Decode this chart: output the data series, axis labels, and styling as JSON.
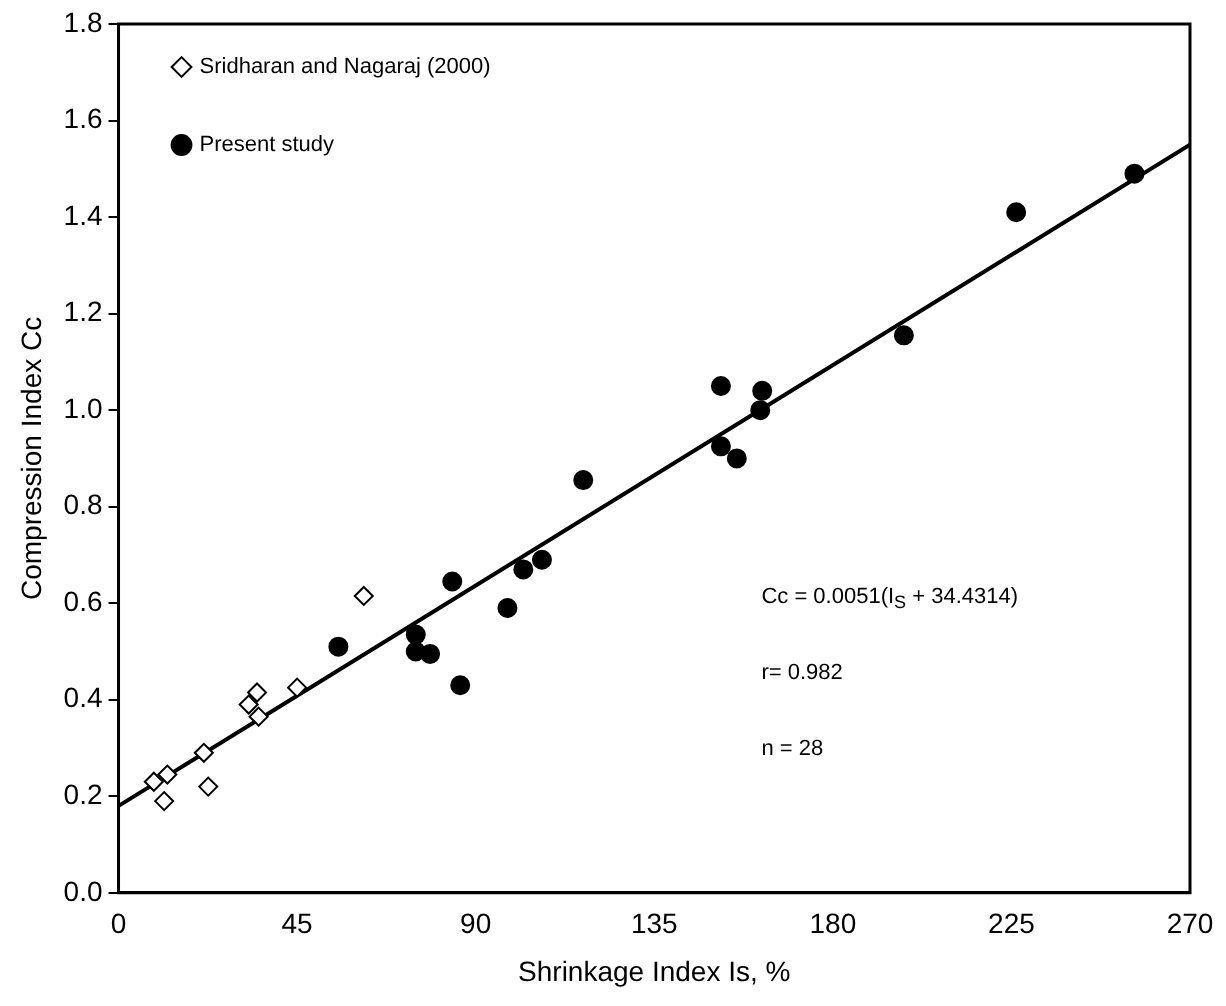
{
  "chart_data": {
    "type": "scatter",
    "xlabel": "Shrinkage Index Is, %",
    "ylabel": "Compression Index Cc",
    "xlim": [
      0,
      270
    ],
    "xticks": [
      0,
      45,
      90,
      135,
      180,
      225,
      270
    ],
    "ylim": [
      0,
      1.8
    ],
    "yticks": [
      {
        "value": 0,
        "label": "0.0"
      },
      {
        "value": 0.2,
        "label": "0.2"
      },
      {
        "value": 0.4,
        "label": "0.4"
      },
      {
        "value": 0.6,
        "label": "0.6"
      },
      {
        "value": 0.8,
        "label": "0.8"
      },
      {
        "value": 1,
        "label": "1.0"
      },
      {
        "value": 1.2,
        "label": "1.2"
      },
      {
        "value": 1.4,
        "label": "1.4"
      },
      {
        "value": 1.6,
        "label": "1.6"
      },
      {
        "value": 1.8,
        "label": "1.8"
      }
    ],
    "grid": false,
    "legend": "top left",
    "annotations": [
      "Cc = 0.0051(I$_{S}$ + 34.4314)",
      "r= 0.982",
      "n = 28"
    ],
    "series": [
      {
        "name": "Sridharan and Nagaraj (2000)",
        "marker": "diamond",
        "color": "#000000",
        "x": [
          8.9,
          11.5,
          12.3,
          21.5,
          22.6,
          32.8,
          34.9,
          35.3,
          45,
          61.8
        ],
        "values": [
          0.23,
          0.19,
          0.245,
          0.29,
          0.22,
          0.39,
          0.415,
          0.365,
          0.425,
          0.615
        ]
      },
      {
        "name": "Present study",
        "marker": "circle",
        "color": "#000000",
        "x": [
          55.4,
          74.9,
          74.9,
          78.5,
          84.1,
          86.1,
          98,
          102,
          106.7,
          117.1,
          151.8,
          151.8,
          155.8,
          162.2,
          161.7,
          197.9,
          226.2,
          256
        ],
        "values": [
          0.51,
          0.535,
          0.5,
          0.495,
          0.645,
          0.43,
          0.59,
          0.67,
          0.69,
          0.855,
          1.05,
          0.925,
          0.9,
          1.04,
          1,
          1.155,
          1.41,
          1.49
        ]
      },
      {
        "type": "line",
        "marker": "none",
        "line_style": "solid",
        "color": "#000000",
        "x": [
          0,
          270
        ],
        "values": [
          0.18,
          1.55
        ]
      }
    ]
  }
}
